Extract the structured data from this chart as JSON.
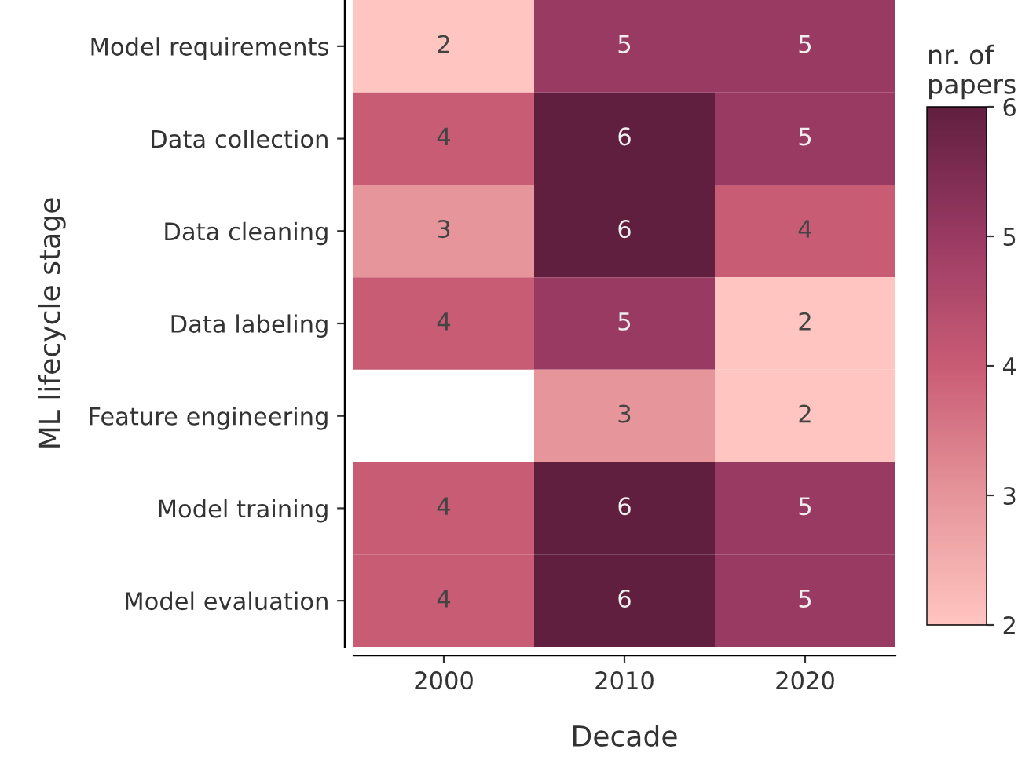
{
  "chart_data": {
    "type": "heatmap",
    "xlabel": "Decade",
    "ylabel": "ML lifecycle stage",
    "clabel": "nr. of\npapers",
    "categories": [
      "2000",
      "2010",
      "2020"
    ],
    "y_categories": [
      "Model requirements",
      "Data collection",
      "Data cleaning",
      "Data labeling",
      "Feature engineering",
      "Model training",
      "Model evaluation"
    ],
    "cells": [
      [
        2,
        5,
        5
      ],
      [
        4,
        6,
        5
      ],
      [
        3,
        6,
        4
      ],
      [
        4,
        5,
        2
      ],
      [
        null,
        3,
        2
      ],
      [
        4,
        6,
        5
      ],
      [
        4,
        6,
        5
      ]
    ],
    "clim": [
      2,
      6
    ],
    "cticks": [
      2,
      3,
      4,
      5,
      6
    ],
    "data_labels": true
  }
}
